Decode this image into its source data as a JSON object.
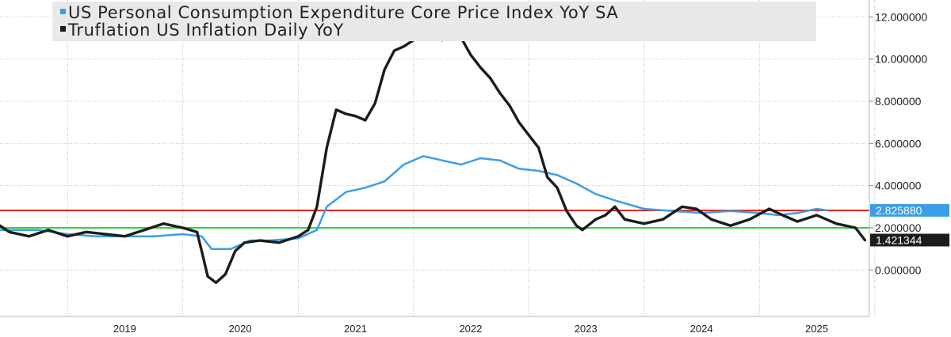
{
  "chart_data": {
    "type": "line",
    "title": "",
    "xlabel": "",
    "ylabel": "",
    "ylim": [
      -2.2,
      12.8
    ],
    "xlim": [
      "2018-06-01",
      "2025-12-15"
    ],
    "grid": true,
    "legend_position": "top-left",
    "x_ticks": [
      "2019",
      "2020",
      "2021",
      "2022",
      "2023",
      "2024",
      "2025"
    ],
    "y_ticks": [
      "0.000000",
      "2.000000",
      "4.000000",
      "6.000000",
      "8.000000",
      "10.000000",
      "12.000000"
    ],
    "series": [
      {
        "name": "US Personal Consumption Expenditure Core Price Index YoY SA",
        "color": "#3c9ee6",
        "last_value_label": "2.825880",
        "points": [
          [
            "2018-06-01",
            1.9
          ],
          [
            "2018-10-01",
            1.9
          ],
          [
            "2019-01-01",
            1.7
          ],
          [
            "2019-04-01",
            1.6
          ],
          [
            "2019-07-01",
            1.6
          ],
          [
            "2019-10-01",
            1.6
          ],
          [
            "2020-01-01",
            1.7
          ],
          [
            "2020-03-01",
            1.6
          ],
          [
            "2020-04-01",
            1.0
          ],
          [
            "2020-06-01",
            1.0
          ],
          [
            "2020-08-01",
            1.4
          ],
          [
            "2020-10-01",
            1.4
          ],
          [
            "2021-01-01",
            1.5
          ],
          [
            "2021-03-01",
            1.9
          ],
          [
            "2021-04-01",
            3.0
          ],
          [
            "2021-06-01",
            3.7
          ],
          [
            "2021-08-01",
            3.9
          ],
          [
            "2021-10-01",
            4.2
          ],
          [
            "2021-12-01",
            5.0
          ],
          [
            "2022-02-01",
            5.4
          ],
          [
            "2022-04-01",
            5.2
          ],
          [
            "2022-06-01",
            5.0
          ],
          [
            "2022-08-01",
            5.3
          ],
          [
            "2022-10-01",
            5.2
          ],
          [
            "2022-12-01",
            4.8
          ],
          [
            "2023-02-01",
            4.7
          ],
          [
            "2023-04-01",
            4.5
          ],
          [
            "2023-06-01",
            4.1
          ],
          [
            "2023-08-01",
            3.6
          ],
          [
            "2023-10-01",
            3.3
          ],
          [
            "2024-01-01",
            2.9
          ],
          [
            "2024-04-01",
            2.8
          ],
          [
            "2024-07-01",
            2.7
          ],
          [
            "2024-10-01",
            2.8
          ],
          [
            "2025-01-01",
            2.7
          ],
          [
            "2025-03-01",
            2.6
          ],
          [
            "2025-05-01",
            2.7
          ],
          [
            "2025-07-01",
            2.9
          ],
          [
            "2025-08-01",
            2.83
          ]
        ]
      },
      {
        "name": "Truflation US Inflation Daily YoY",
        "color": "#1c1c1c",
        "last_value_label": "1.421344",
        "points": [
          [
            "2018-06-01",
            2.1
          ],
          [
            "2018-07-01",
            1.8
          ],
          [
            "2018-09-01",
            1.6
          ],
          [
            "2018-11-01",
            1.9
          ],
          [
            "2019-01-01",
            1.6
          ],
          [
            "2019-03-01",
            1.8
          ],
          [
            "2019-05-01",
            1.7
          ],
          [
            "2019-07-01",
            1.6
          ],
          [
            "2019-09-01",
            1.9
          ],
          [
            "2019-11-01",
            2.2
          ],
          [
            "2020-01-01",
            2.0
          ],
          [
            "2020-02-15",
            1.8
          ],
          [
            "2020-03-01",
            0.9
          ],
          [
            "2020-03-20",
            -0.3
          ],
          [
            "2020-04-15",
            -0.6
          ],
          [
            "2020-05-15",
            -0.2
          ],
          [
            "2020-06-15",
            0.9
          ],
          [
            "2020-07-15",
            1.3
          ],
          [
            "2020-09-01",
            1.4
          ],
          [
            "2020-11-01",
            1.3
          ],
          [
            "2021-01-01",
            1.6
          ],
          [
            "2021-02-01",
            1.9
          ],
          [
            "2021-03-01",
            3.0
          ],
          [
            "2021-04-01",
            5.8
          ],
          [
            "2021-05-01",
            7.6
          ],
          [
            "2021-06-01",
            7.4
          ],
          [
            "2021-07-01",
            7.3
          ],
          [
            "2021-08-01",
            7.1
          ],
          [
            "2021-09-01",
            7.9
          ],
          [
            "2021-10-01",
            9.5
          ],
          [
            "2021-11-01",
            10.4
          ],
          [
            "2021-12-01",
            10.6
          ],
          [
            "2022-01-01",
            10.9
          ],
          [
            "2022-02-01",
            11.0
          ],
          [
            "2022-03-01",
            11.1
          ],
          [
            "2022-04-01",
            10.9
          ],
          [
            "2022-05-01",
            11.4
          ],
          [
            "2022-06-01",
            11.0
          ],
          [
            "2022-07-01",
            10.2
          ],
          [
            "2022-08-01",
            9.6
          ],
          [
            "2022-09-01",
            9.1
          ],
          [
            "2022-10-01",
            8.4
          ],
          [
            "2022-11-01",
            7.8
          ],
          [
            "2022-12-01",
            7.0
          ],
          [
            "2023-01-01",
            6.4
          ],
          [
            "2023-02-01",
            5.8
          ],
          [
            "2023-03-01",
            4.4
          ],
          [
            "2023-04-01",
            3.9
          ],
          [
            "2023-05-01",
            2.8
          ],
          [
            "2023-06-01",
            2.1
          ],
          [
            "2023-06-20",
            1.9
          ],
          [
            "2023-08-01",
            2.4
          ],
          [
            "2023-09-01",
            2.6
          ],
          [
            "2023-10-01",
            3.0
          ],
          [
            "2023-11-01",
            2.4
          ],
          [
            "2024-01-01",
            2.2
          ],
          [
            "2024-03-01",
            2.4
          ],
          [
            "2024-05-01",
            3.0
          ],
          [
            "2024-06-15",
            2.9
          ],
          [
            "2024-08-01",
            2.4
          ],
          [
            "2024-10-01",
            2.1
          ],
          [
            "2024-12-01",
            2.4
          ],
          [
            "2025-02-01",
            2.9
          ],
          [
            "2025-03-15",
            2.6
          ],
          [
            "2025-05-01",
            2.3
          ],
          [
            "2025-07-01",
            2.6
          ],
          [
            "2025-09-01",
            2.2
          ],
          [
            "2025-11-01",
            2.0
          ],
          [
            "2025-12-01",
            1.42
          ]
        ]
      }
    ],
    "reference_lines": [
      {
        "value": 2.82588,
        "color": "#e8221b"
      },
      {
        "value": 2.0,
        "color": "#2ed34a"
      }
    ]
  }
}
